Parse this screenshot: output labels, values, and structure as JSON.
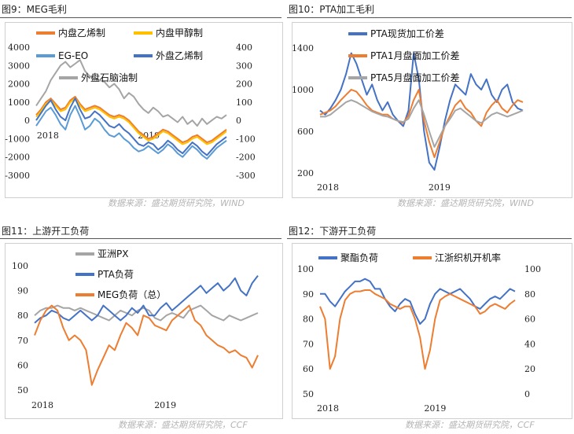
{
  "panels": [
    {
      "title": "图9：MEG毛利",
      "source": "数据来源：盛达期货研究院，WIND"
    },
    {
      "title": "图10：PTA加工毛利",
      "source": "数据来源：盛达期货研究院，WIND"
    },
    {
      "title": "图11：上游开工负荷",
      "source": "数据来源：盛达期货研究院，CCF"
    },
    {
      "title": "图12：下游开工负荷",
      "source": "数据来源：盛达期货研究院，CCF"
    }
  ],
  "chart_data": [
    {
      "type": "line",
      "title": "",
      "x_labels": [
        "2018",
        "2019"
      ],
      "left_axis": {
        "ticks": [
          -3000,
          -2000,
          -1000,
          0,
          1000,
          2000,
          3000,
          4000
        ],
        "ylim": [
          -3000,
          4000
        ]
      },
      "right_axis": {
        "ticks": [
          -300,
          -200,
          -100,
          0,
          100,
          200,
          300,
          400
        ],
        "ylim": [
          -300,
          400
        ]
      },
      "legend_placement": "top",
      "series": [
        {
          "name": "内盘乙烯制",
          "color": "#ED7D31",
          "axis": "left",
          "values": [
            300,
            600,
            1000,
            1200,
            900,
            600,
            700,
            1100,
            1300,
            900,
            600,
            700,
            800,
            700,
            500,
            300,
            200,
            300,
            200,
            0,
            -300,
            -600,
            -800,
            -1000,
            -900,
            -700,
            -500,
            -600,
            -800,
            -1000,
            -1200,
            -1100,
            -900,
            -800,
            -1000,
            -1200,
            -1100,
            -900,
            -700,
            -500
          ]
        },
        {
          "name": "内盘甲醇制",
          "color": "#FFC000",
          "axis": "left",
          "values": [
            200,
            500,
            900,
            1100,
            800,
            500,
            600,
            1000,
            1200,
            800,
            500,
            600,
            700,
            600,
            400,
            200,
            100,
            200,
            100,
            -100,
            -400,
            -700,
            -900,
            -1100,
            -1000,
            -800,
            -600,
            -700,
            -900,
            -1100,
            -1300,
            -1200,
            -1000,
            -900,
            -1100,
            -1300,
            -1200,
            -1000,
            -800,
            -600
          ]
        },
        {
          "name": "EG-EO",
          "color": "#5B9BD5",
          "axis": "left",
          "values": [
            -300,
            100,
            500,
            700,
            300,
            -200,
            -500,
            300,
            800,
            200,
            -500,
            -300,
            100,
            -100,
            -500,
            -800,
            -900,
            -700,
            -1000,
            -1200,
            -1500,
            -1700,
            -1600,
            -1400,
            -1600,
            -1800,
            -1600,
            -1300,
            -1500,
            -1800,
            -2000,
            -1700,
            -1400,
            -1600,
            -1900,
            -2100,
            -1800,
            -1500,
            -1300,
            -1100
          ]
        },
        {
          "name": "外盘乙烯制",
          "color": "#4472C4",
          "axis": "left",
          "values": [
            0,
            400,
            800,
            1100,
            600,
            200,
            0,
            700,
            1200,
            600,
            100,
            200,
            500,
            300,
            0,
            -300,
            -400,
            -200,
            -500,
            -700,
            -1000,
            -1300,
            -1400,
            -1200,
            -1300,
            -1600,
            -1400,
            -1100,
            -1300,
            -1600,
            -1800,
            -1500,
            -1200,
            -1400,
            -1700,
            -1900,
            -1600,
            -1300,
            -1100,
            -900
          ]
        },
        {
          "name": "外盘石脑油制",
          "color": "#A5A5A5",
          "axis": "right",
          "values": [
            80,
            120,
            160,
            220,
            260,
            300,
            320,
            290,
            310,
            330,
            270,
            240,
            230,
            220,
            210,
            180,
            200,
            170,
            120,
            150,
            130,
            90,
            60,
            40,
            70,
            50,
            20,
            30,
            10,
            -10,
            20,
            -20,
            0,
            -30,
            10,
            -20,
            0,
            20,
            10,
            30
          ]
        }
      ]
    },
    {
      "type": "line",
      "title": "",
      "x_labels": [
        "2018",
        "2019"
      ],
      "y_axis": {
        "ticks": [
          200,
          600,
          1000,
          1400
        ],
        "ylim": [
          200,
          1400
        ]
      },
      "legend_placement": "top",
      "series": [
        {
          "name": "PTA现货加工价差",
          "color": "#4472C4",
          "values": [
            800,
            760,
            820,
            900,
            1000,
            1150,
            1350,
            1250,
            1100,
            950,
            1050,
            900,
            800,
            880,
            760,
            700,
            650,
            800,
            1350,
            1100,
            600,
            300,
            230,
            450,
            700,
            900,
            1050,
            1000,
            950,
            1150,
            1050,
            1000,
            1100,
            950,
            880,
            1000,
            1050,
            880,
            820,
            800
          ]
        },
        {
          "name": "PTA1月盘面加工价差",
          "color": "#ED7D31",
          "values": [
            760,
            780,
            800,
            840,
            900,
            950,
            1000,
            980,
            920,
            850,
            800,
            780,
            760,
            760,
            720,
            700,
            680,
            750,
            900,
            1000,
            700,
            500,
            350,
            500,
            650,
            750,
            850,
            900,
            820,
            780,
            700,
            650,
            780,
            850,
            900,
            820,
            780,
            850,
            900,
            880
          ]
        },
        {
          "name": "PTA5月盘面加工价差",
          "color": "#A5A5A5",
          "values": [
            740,
            740,
            760,
            800,
            840,
            880,
            900,
            880,
            850,
            820,
            790,
            770,
            750,
            740,
            720,
            700,
            690,
            720,
            820,
            900,
            760,
            600,
            450,
            550,
            650,
            720,
            800,
            820,
            780,
            740,
            700,
            680,
            720,
            760,
            780,
            760,
            740,
            760,
            780,
            800
          ]
        }
      ]
    },
    {
      "type": "line",
      "title": "",
      "x_labels": [
        "2018",
        "2019"
      ],
      "y_axis": {
        "ticks": [
          50,
          60,
          70,
          80,
          90,
          100
        ],
        "ylim": [
          50,
          100
        ]
      },
      "legend_placement": "top",
      "series": [
        {
          "name": "亚洲PX",
          "color": "#A5A5A5",
          "values": [
            80,
            82,
            83,
            83,
            84,
            83,
            83,
            82,
            83,
            82,
            81,
            80,
            79,
            78,
            80,
            82,
            81,
            80,
            82,
            83,
            82,
            79,
            78,
            80,
            81,
            80,
            79,
            82,
            83,
            84,
            82,
            80,
            79,
            78,
            80,
            79,
            78,
            79,
            80,
            81
          ]
        },
        {
          "name": "PTA负荷",
          "color": "#4472C4",
          "values": [
            77,
            79,
            80,
            82,
            81,
            79,
            78,
            80,
            82,
            80,
            78,
            80,
            84,
            82,
            80,
            78,
            80,
            83,
            81,
            84,
            80,
            80,
            83,
            85,
            82,
            84,
            86,
            88,
            90,
            92,
            89,
            91,
            93,
            90,
            92,
            95,
            90,
            88,
            93,
            96
          ]
        },
        {
          "name": "MEG负荷（总）",
          "color": "#ED7D31",
          "values": [
            72,
            78,
            82,
            84,
            82,
            75,
            70,
            72,
            70,
            66,
            52,
            58,
            63,
            68,
            66,
            72,
            77,
            75,
            72,
            80,
            79,
            76,
            75,
            74,
            78,
            80,
            82,
            84,
            78,
            76,
            72,
            70,
            68,
            67,
            65,
            66,
            64,
            63,
            59,
            64
          ]
        }
      ]
    },
    {
      "type": "line",
      "title": "",
      "x_labels": [
        "2018",
        "2019"
      ],
      "left_axis": {
        "ticks": [
          50,
          60,
          70,
          80,
          90,
          100
        ],
        "ylim": [
          50,
          100
        ]
      },
      "right_axis": {
        "ticks": [
          0,
          20,
          40,
          60,
          80,
          100
        ],
        "ylim": [
          0,
          100
        ]
      },
      "legend_placement": "top",
      "series": [
        {
          "name": "聚酯负荷",
          "color": "#4472C4",
          "axis": "left",
          "values": [
            90,
            90,
            87,
            85,
            88,
            91,
            93,
            95,
            95,
            96,
            95,
            92,
            92,
            88,
            85,
            83,
            86,
            88,
            87,
            82,
            78,
            80,
            86,
            90,
            92,
            91,
            90,
            91,
            92,
            90,
            88,
            85,
            84,
            86,
            88,
            89,
            88,
            90,
            92,
            91
          ]
        },
        {
          "name": "江浙织机开机率",
          "color": "#ED7D31",
          "axis": "right",
          "values": [
            70,
            60,
            20,
            30,
            60,
            75,
            80,
            82,
            82,
            83,
            83,
            80,
            78,
            76,
            72,
            70,
            68,
            70,
            70,
            60,
            45,
            20,
            35,
            60,
            75,
            78,
            80,
            78,
            76,
            74,
            72,
            70,
            64,
            66,
            70,
            72,
            70,
            68,
            72,
            75
          ]
        }
      ]
    }
  ]
}
